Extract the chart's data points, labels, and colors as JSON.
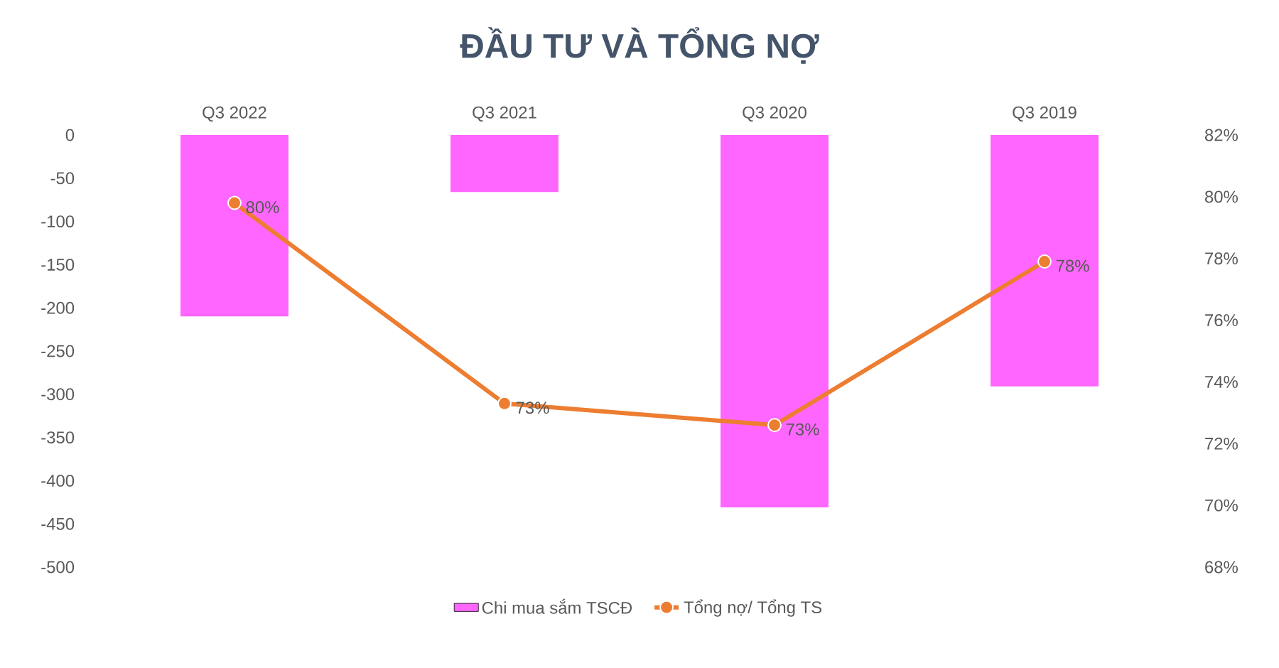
{
  "chart_data": {
    "type": "bar",
    "title": "ĐẦU TƯ VÀ TỔNG NỢ",
    "categories": [
      "Q3 2022",
      "Q3 2021",
      "Q3 2020",
      "Q3 2019"
    ],
    "series": [
      {
        "name": "Chi mua sắm TSCĐ",
        "color": "#ff66ff",
        "values": [
          -210,
          -66,
          -431,
          -291
        ]
      },
      {
        "name": "Tổng nợ/ Tổng TS",
        "type": "line",
        "axis": "y2",
        "color": "#ed7d31",
        "marker": "circle",
        "values": [
          79.8,
          73.3,
          72.6,
          77.9
        ],
        "value_labels": [
          "80%",
          "73%",
          "73%",
          "78%"
        ]
      }
    ],
    "ylim": [
      -500,
      0
    ],
    "yticks": [
      -500,
      -450,
      -400,
      -350,
      -300,
      -250,
      -200,
      -150,
      -100,
      -50,
      0
    ],
    "y2lim": [
      68,
      82
    ],
    "y2ticks": [
      {
        "value": 68,
        "label": "68%"
      },
      {
        "value": 70,
        "label": "70%"
      },
      {
        "value": 72,
        "label": "72%"
      },
      {
        "value": 74,
        "label": "74%"
      },
      {
        "value": 76,
        "label": "76%"
      },
      {
        "value": 78,
        "label": "78%"
      },
      {
        "value": 80,
        "label": "80%"
      },
      {
        "value": 82,
        "label": "82%"
      }
    ],
    "grid": false,
    "legend": "bottom"
  }
}
